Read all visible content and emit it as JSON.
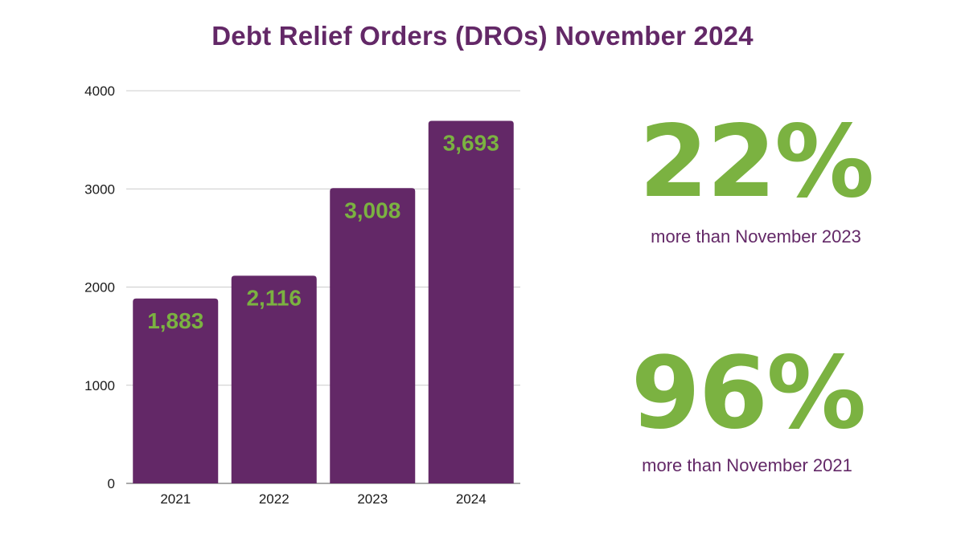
{
  "title": "Debt Relief Orders (DROs) November 2024",
  "colors": {
    "bar": "#632867",
    "label": "#7bb241",
    "title": "#632867",
    "grid": "#cccccc"
  },
  "chart_data": {
    "type": "bar",
    "title": "Debt Relief Orders (DROs) November 2024",
    "categories": [
      "2021",
      "2022",
      "2023",
      "2024"
    ],
    "values": [
      1883,
      2116,
      3008,
      3693
    ],
    "data_labels": [
      "1,883",
      "2,116",
      "3,008",
      "3,693"
    ],
    "ylim": [
      0,
      4000
    ],
    "yticks": [
      "0",
      "1000",
      "2000",
      "3000",
      "4000"
    ],
    "xlabel": "",
    "ylabel": "",
    "grid": true
  },
  "stats": [
    {
      "value": "22%",
      "caption": "more than November 2023"
    },
    {
      "value": "96%",
      "caption": "more than November 2021"
    }
  ]
}
